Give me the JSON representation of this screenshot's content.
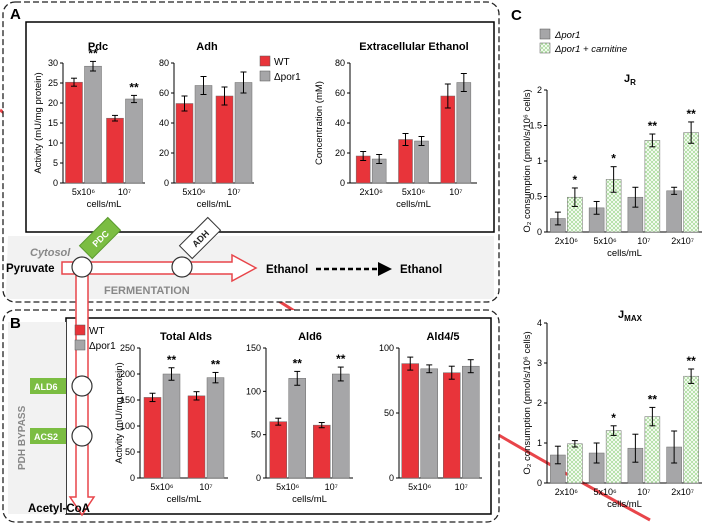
{
  "panels": {
    "a": "A",
    "b": "B",
    "c": "C"
  },
  "colors": {
    "wt": "#e8343a",
    "por1": "#a6a6a8",
    "carnitine": "#a9dc9b",
    "enzyme": "#7bbd42",
    "arrow": "#e8454a"
  },
  "legend_ab": {
    "wt": "WT",
    "por1": "Δpor1"
  },
  "legend_c": {
    "por1": "Δpor1",
    "carnitine": "Δpor1 + carnitine"
  },
  "pathway": {
    "cytosol": "Cytosol",
    "pyruvate": "Pyruvate",
    "pdc": "PDC",
    "adh": "ADH",
    "ethanol_in": "Ethanol",
    "ethanol_out": "Ethanol",
    "fermentation": "FERMENTATION",
    "ald6": "ALD6",
    "acs2": "ACS2",
    "bypass": "PDH BYPASS",
    "acetyl_coa": "Acetyl-CoA"
  },
  "chart_data": [
    {
      "id": "pdc",
      "type": "bar",
      "title": "Pdc",
      "categories": [
        "5x10⁶",
        "10⁷"
      ],
      "xlabel": "cells/mL",
      "ylabel": "Activity (mU/mg protein)",
      "ylim": [
        0,
        30
      ],
      "yticks": [
        0,
        5,
        10,
        15,
        20,
        25,
        30
      ],
      "series": [
        {
          "name": "WT",
          "values": [
            25.2,
            16.2
          ],
          "errors": [
            1.0,
            0.7
          ]
        },
        {
          "name": "Δpor1",
          "values": [
            29.2,
            21.0
          ],
          "errors": [
            1.2,
            0.9
          ]
        }
      ],
      "annotations": [
        {
          "category": "5x10⁶",
          "series": "Δpor1",
          "text": "**"
        },
        {
          "category": "10⁷",
          "series": "Δpor1",
          "text": "**"
        }
      ]
    },
    {
      "id": "adh",
      "type": "bar",
      "title": "Adh",
      "categories": [
        "5x10⁶",
        "10⁷"
      ],
      "xlabel": "cells/mL",
      "ylabel": "",
      "ylim": [
        0,
        80
      ],
      "yticks": [
        0,
        20,
        40,
        60,
        80
      ],
      "series": [
        {
          "name": "WT",
          "values": [
            53,
            58
          ],
          "errors": [
            5,
            6
          ]
        },
        {
          "name": "Δpor1",
          "values": [
            65,
            67
          ],
          "errors": [
            6,
            7
          ]
        }
      ],
      "annotations": []
    },
    {
      "id": "ethanol",
      "type": "bar",
      "title": "Extracellular Ethanol",
      "categories": [
        "2x10⁶",
        "5x10⁶",
        "10⁷"
      ],
      "xlabel": "cells/mL",
      "ylabel": "Concentration (mM)",
      "ylim": [
        0,
        80
      ],
      "yticks": [
        0,
        20,
        40,
        60,
        80
      ],
      "series": [
        {
          "name": "WT",
          "values": [
            18,
            29,
            58
          ],
          "errors": [
            3,
            4,
            8
          ]
        },
        {
          "name": "Δpor1",
          "values": [
            16,
            28,
            67
          ],
          "errors": [
            3,
            3,
            6
          ]
        }
      ],
      "annotations": []
    },
    {
      "id": "total_alds",
      "type": "bar",
      "title": "Total Alds",
      "categories": [
        "5x10⁶",
        "10⁷"
      ],
      "xlabel": "cells/mL",
      "ylabel": "Activity (mU/mg protein)",
      "ylim": [
        0,
        250
      ],
      "yticks": [
        0,
        50,
        100,
        150,
        200,
        250
      ],
      "series": [
        {
          "name": "WT",
          "values": [
            155,
            158
          ],
          "errors": [
            8,
            8
          ]
        },
        {
          "name": "Δpor1",
          "values": [
            200,
            193
          ],
          "errors": [
            12,
            10
          ]
        }
      ],
      "annotations": [
        {
          "category": "5x10⁶",
          "series": "Δpor1",
          "text": "**"
        },
        {
          "category": "10⁷",
          "series": "Δpor1",
          "text": "**"
        }
      ]
    },
    {
      "id": "ald6",
      "type": "bar",
      "title": "Ald6",
      "categories": [
        "5x10⁶",
        "10⁷"
      ],
      "xlabel": "cells/mL",
      "ylabel": "",
      "ylim": [
        0,
        150
      ],
      "yticks": [
        0,
        50,
        100,
        150
      ],
      "series": [
        {
          "name": "WT",
          "values": [
            65,
            61
          ],
          "errors": [
            4,
            3
          ]
        },
        {
          "name": "Δpor1",
          "values": [
            115,
            120
          ],
          "errors": [
            8,
            8
          ]
        }
      ],
      "annotations": [
        {
          "category": "5x10⁶",
          "series": "Δpor1",
          "text": "**"
        },
        {
          "category": "10⁷",
          "series": "Δpor1",
          "text": "**"
        }
      ]
    },
    {
      "id": "ald45",
      "type": "bar",
      "title": "Ald4/5",
      "categories": [
        "5x10⁶",
        "10⁷"
      ],
      "xlabel": "",
      "ylabel": "",
      "ylim": [
        0,
        100
      ],
      "yticks": [
        0,
        50,
        100
      ],
      "series": [
        {
          "name": "WT",
          "values": [
            88,
            81
          ],
          "errors": [
            5,
            5
          ]
        },
        {
          "name": "Δpor1",
          "values": [
            84,
            86
          ],
          "errors": [
            3,
            5
          ]
        }
      ],
      "annotations": []
    },
    {
      "id": "jr",
      "type": "bar",
      "title": "J",
      "title_sub": "R",
      "categories": [
        "2x10⁶",
        "5x10⁶",
        "10⁷",
        "2x10⁷"
      ],
      "xlabel": "cells/mL",
      "ylabel": "O₂ consumption (pmol/s/10⁶ cells)",
      "ylim": [
        0,
        2.0
      ],
      "yticks": [
        0,
        0.5,
        1.0,
        1.5,
        2.0
      ],
      "series": [
        {
          "name": "Δpor1",
          "values": [
            0.19,
            0.34,
            0.49,
            0.58
          ],
          "errors": [
            0.09,
            0.09,
            0.14,
            0.05
          ]
        },
        {
          "name": "Δpor1 + carnitine",
          "values": [
            0.49,
            0.74,
            1.29,
            1.4
          ],
          "errors": [
            0.13,
            0.18,
            0.09,
            0.15
          ]
        }
      ],
      "annotations": [
        {
          "category": "2x10⁶",
          "series": "Δpor1 + carnitine",
          "text": "*"
        },
        {
          "category": "5x10⁶",
          "series": "Δpor1 + carnitine",
          "text": "*"
        },
        {
          "category": "10⁷",
          "series": "Δpor1 + carnitine",
          "text": "**"
        },
        {
          "category": "2x10⁷",
          "series": "Δpor1 + carnitine",
          "text": "**"
        }
      ]
    },
    {
      "id": "jmax",
      "type": "bar",
      "title": "J",
      "title_sub": "MAX",
      "categories": [
        "2x10⁶",
        "5x10⁶",
        "10⁷",
        "2x10⁷"
      ],
      "xlabel": "cells/mL",
      "ylabel": "O₂ consumption (pmol/s/10⁶ cells)",
      "ylim": [
        0,
        4
      ],
      "yticks": [
        0,
        1,
        2,
        3,
        4
      ],
      "series": [
        {
          "name": "Δpor1",
          "values": [
            0.7,
            0.75,
            0.87,
            0.9
          ],
          "errors": [
            0.22,
            0.25,
            0.35,
            0.4
          ]
        },
        {
          "name": "Δpor1 + carnitine",
          "values": [
            0.98,
            1.31,
            1.66,
            2.67
          ],
          "errors": [
            0.08,
            0.12,
            0.23,
            0.18
          ]
        }
      ],
      "annotations": [
        {
          "category": "5x10⁶",
          "series": "Δpor1 + carnitine",
          "text": "*"
        },
        {
          "category": "10⁷",
          "series": "Δpor1 + carnitine",
          "text": "**"
        },
        {
          "category": "2x10⁷",
          "series": "Δpor1 + carnitine",
          "text": "**"
        }
      ]
    }
  ]
}
